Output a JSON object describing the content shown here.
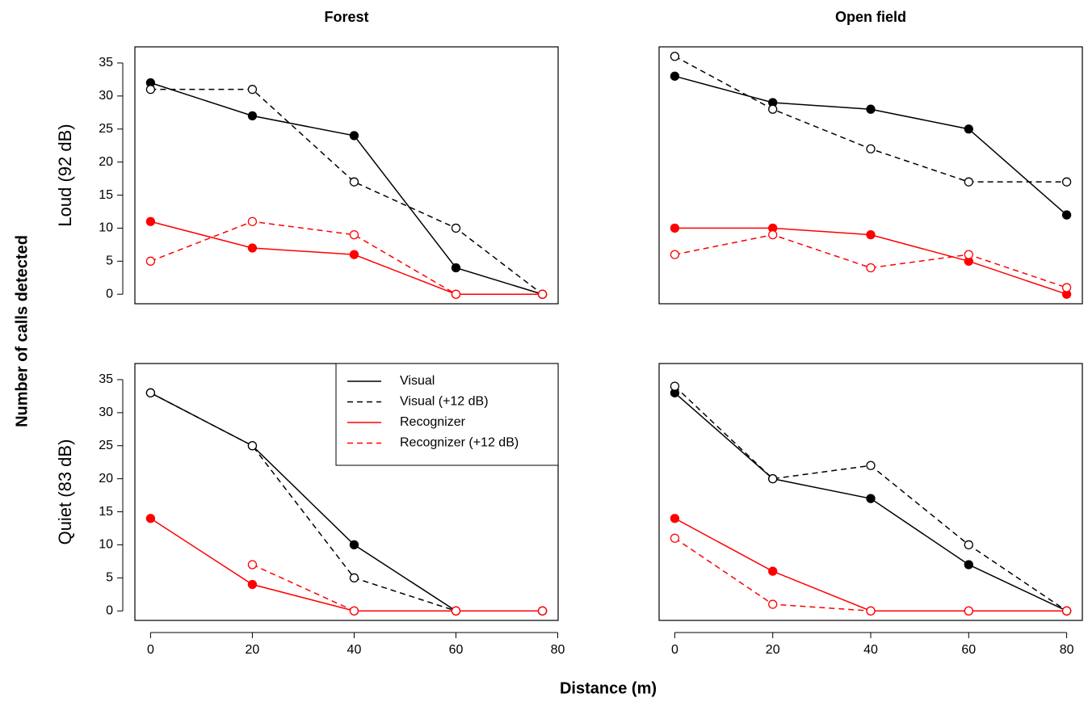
{
  "xlabel": "Distance (m)",
  "ylabel": "Number of calls detected",
  "chart_data": [
    {
      "type": "line",
      "title": "Forest",
      "ylabel": "Loud (92 dB)",
      "x": [
        0,
        20,
        40,
        60,
        77
      ],
      "xlim": [
        -3.08,
        80.08
      ],
      "ylim": [
        -1.44,
        37.44
      ],
      "yticks": [
        0,
        5,
        10,
        15,
        20,
        25,
        30,
        35
      ],
      "series": [
        {
          "color": "#000000",
          "dash": false,
          "values": [
            32,
            27,
            24,
            4,
            0
          ]
        },
        {
          "color": "#000000",
          "dash": true,
          "values": [
            31,
            31,
            17,
            10,
            0
          ]
        },
        {
          "color": "#ff0000",
          "dash": false,
          "values": [
            11,
            7,
            6,
            0,
            0
          ]
        },
        {
          "color": "#ff0000",
          "dash": true,
          "values": [
            5,
            11,
            9,
            0,
            0
          ]
        }
      ]
    },
    {
      "type": "line",
      "title": "Open field",
      "x": [
        0,
        20,
        40,
        60,
        80
      ],
      "xlim": [
        -3.2,
        83.2
      ],
      "ylim": [
        -1.44,
        37.44
      ],
      "series": [
        {
          "color": "#000000",
          "dash": false,
          "values": [
            33,
            29,
            28,
            25,
            12
          ]
        },
        {
          "color": "#000000",
          "dash": true,
          "values": [
            36,
            28,
            22,
            17,
            17
          ]
        },
        {
          "color": "#ff0000",
          "dash": false,
          "values": [
            10,
            10,
            9,
            5,
            0
          ]
        },
        {
          "color": "#ff0000",
          "dash": true,
          "values": [
            6,
            9,
            4,
            6,
            1
          ]
        }
      ]
    },
    {
      "type": "line",
      "ylabel": "Quiet (83 dB)",
      "x": [
        0,
        20,
        40,
        60,
        77
      ],
      "xlim": [
        -3.08,
        80.08
      ],
      "ylim": [
        -1.44,
        37.44
      ],
      "xticks": [
        0,
        20,
        40,
        60,
        80
      ],
      "yticks": [
        0,
        5,
        10,
        15,
        20,
        25,
        30,
        35
      ],
      "legend": "top-right",
      "series": [
        {
          "name": "Visual",
          "color": "#000000",
          "dash": false,
          "values": [
            33,
            25,
            10,
            0,
            0
          ]
        },
        {
          "name": "Visual (+12 dB)",
          "color": "#000000",
          "dash": true,
          "values": [
            33,
            25,
            5,
            0,
            0
          ]
        },
        {
          "name": "Recognizer",
          "color": "#ff0000",
          "dash": false,
          "values": [
            14,
            4,
            0,
            0,
            0
          ]
        },
        {
          "name": "Recognizer (+12 dB)",
          "color": "#ff0000",
          "dash": true,
          "values": [
            null,
            7,
            0,
            0,
            0
          ]
        }
      ]
    },
    {
      "type": "line",
      "x": [
        0,
        20,
        40,
        60,
        80
      ],
      "xlim": [
        -3.2,
        83.2
      ],
      "ylim": [
        -1.44,
        37.44
      ],
      "xticks": [
        0,
        20,
        40,
        60,
        80
      ],
      "series": [
        {
          "color": "#000000",
          "dash": false,
          "values": [
            33,
            20,
            17,
            7,
            0
          ]
        },
        {
          "color": "#000000",
          "dash": true,
          "values": [
            34,
            20,
            22,
            10,
            0
          ]
        },
        {
          "color": "#ff0000",
          "dash": false,
          "values": [
            14,
            6,
            0,
            0,
            0
          ]
        },
        {
          "color": "#ff0000",
          "dash": true,
          "values": [
            11,
            1,
            0,
            0,
            0
          ]
        }
      ]
    }
  ]
}
